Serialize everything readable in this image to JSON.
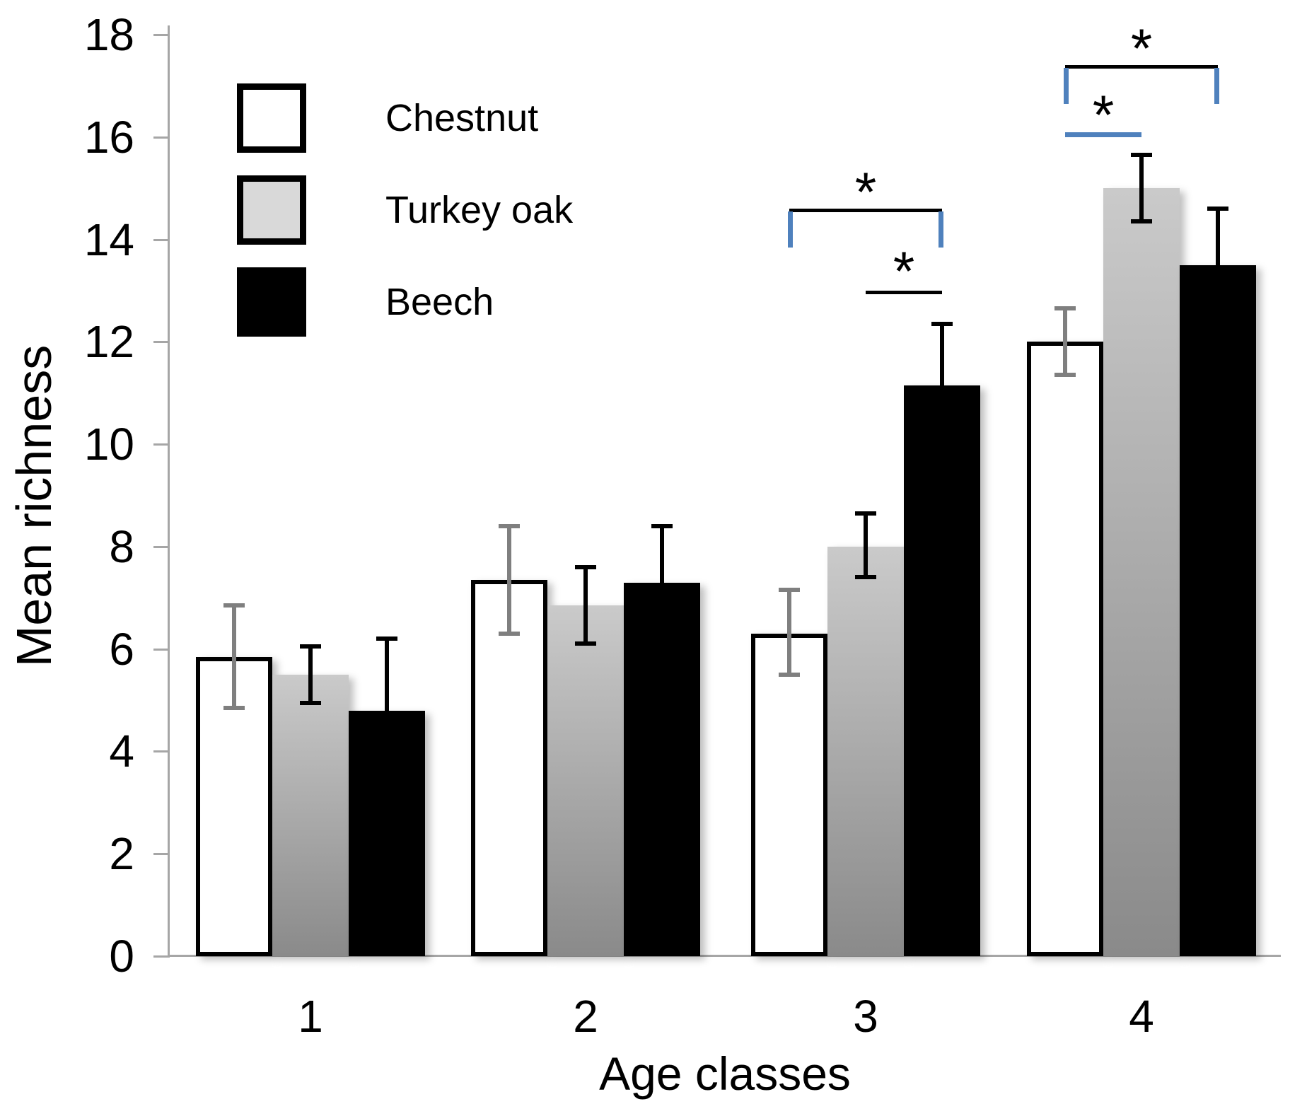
{
  "chart_data": {
    "type": "bar",
    "title": "",
    "xlabel": "Age classes",
    "ylabel": "Mean richness",
    "categories": [
      "1",
      "2",
      "3",
      "4"
    ],
    "ylim": [
      0,
      18
    ],
    "y_tick_step": 2,
    "y_tick_labels": [
      "0",
      "2",
      "4",
      "6",
      "8",
      "10",
      "12",
      "14",
      "16",
      "18"
    ],
    "grid": false,
    "legend_position": "upper-left-inside",
    "axis_color": "#a6a6a6",
    "series": [
      {
        "name": "Chestnut",
        "values": [
          5.85,
          7.35,
          6.3,
          12.0
        ],
        "err_up": [
          1.0,
          1.05,
          0.85,
          0.65
        ],
        "err_down": [
          1.0,
          1.05,
          0.8,
          0.65
        ],
        "fill": "#ffffff",
        "border": "#000000",
        "error_color": "#7f7f7f",
        "lower_whisker_hidden": false
      },
      {
        "name": "Turkey oak",
        "values": [
          5.5,
          6.85,
          8.0,
          15.0
        ],
        "err_up": [
          0.55,
          0.75,
          0.65,
          0.65
        ],
        "err_down": [
          0.55,
          0.75,
          0.6,
          0.65
        ],
        "fill": "gradient",
        "fill_gradient_top": "#cacaca",
        "fill_gradient_bottom": "#8a8a8a",
        "error_color": "#000000",
        "lower_whisker_hidden": false
      },
      {
        "name": "Beech",
        "values": [
          4.8,
          7.3,
          11.15,
          13.5
        ],
        "err_up": [
          1.4,
          1.1,
          1.2,
          1.1
        ],
        "err_down": [
          0,
          0,
          0,
          0
        ],
        "fill": "#000000",
        "error_color": "#000000",
        "lower_whisker_hidden": true
      }
    ],
    "legend": [
      {
        "label": "Chestnut",
        "swatch_fill": "#ffffff",
        "swatch_border": "#000000"
      },
      {
        "label": "Turkey oak",
        "swatch_fill": "#d9d9d9",
        "swatch_border": "#000000"
      },
      {
        "label": "Beech",
        "swatch_fill": "#000000",
        "swatch_border": "#000000"
      }
    ],
    "annotations": [
      {
        "age_class": "3",
        "from_series": "Chestnut",
        "to_series": "Beech",
        "line_y": 14.6,
        "star": "*",
        "star_y": 15.2,
        "line_color": "#000000",
        "end_ticks_color": "#4f81bd",
        "end_tick_drop": 0.7
      },
      {
        "age_class": "3",
        "from_series": "Turkey oak",
        "to_series": "Beech",
        "line_y": 13.0,
        "star": "*",
        "star_y": 13.65,
        "line_color": "#000000",
        "end_ticks_color": null,
        "end_tick_drop": 0
      },
      {
        "age_class": "4",
        "from_series": "Chestnut",
        "to_series": "Beech",
        "line_y": 17.4,
        "star": "*",
        "star_y": 18.0,
        "line_color": "#000000",
        "end_ticks_color": "#4f81bd",
        "end_tick_drop": 0.7
      },
      {
        "age_class": "4",
        "from_series": "Chestnut",
        "to_series": "Turkey oak",
        "line_y": 16.1,
        "star": "*",
        "star_y": 16.7,
        "line_color": "#4f81bd",
        "end_ticks_color": null,
        "end_tick_drop": 0
      }
    ]
  }
}
